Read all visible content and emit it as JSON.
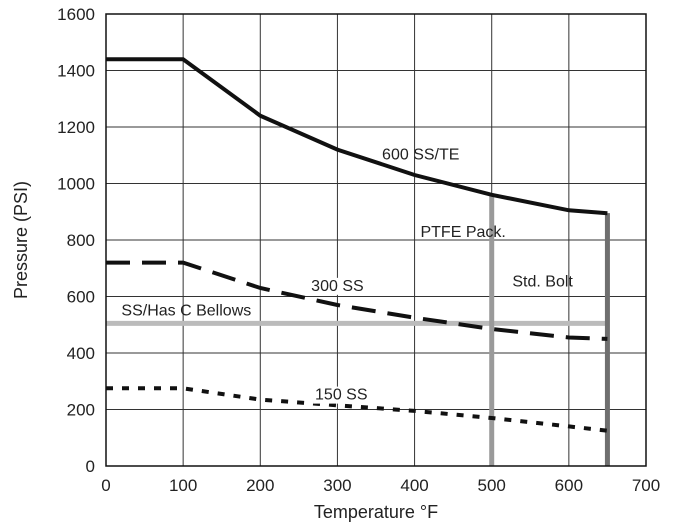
{
  "chart_data": {
    "type": "line",
    "xlabel": "Temperature °F",
    "ylabel": "Pressure (PSI)",
    "xlim": [
      0,
      700
    ],
    "ylim": [
      0,
      1600
    ],
    "x_ticks": [
      0,
      100,
      200,
      300,
      400,
      500,
      600,
      700
    ],
    "y_ticks": [
      0,
      200,
      400,
      600,
      800,
      1000,
      1200,
      1400,
      1600
    ],
    "x_tick_labels": [
      "0",
      "100",
      "200",
      "300",
      "400",
      "500",
      "600",
      "700"
    ],
    "y_tick_labels": [
      "0",
      "200",
      "400",
      "600",
      "800",
      "1000",
      "1200",
      "1400",
      "1600"
    ],
    "grid": true,
    "series": [
      {
        "name": "600 SS/TE",
        "style": "solid",
        "color": "#111111",
        "points": [
          [
            0,
            1440
          ],
          [
            100,
            1440
          ],
          [
            200,
            1240
          ],
          [
            300,
            1120
          ],
          [
            400,
            1030
          ],
          [
            500,
            960
          ],
          [
            600,
            905
          ],
          [
            650,
            895
          ]
        ]
      },
      {
        "name": "300 SS",
        "style": "dashed",
        "color": "#111111",
        "points": [
          [
            0,
            720
          ],
          [
            100,
            720
          ],
          [
            200,
            630
          ],
          [
            300,
            570
          ],
          [
            400,
            525
          ],
          [
            500,
            485
          ],
          [
            600,
            455
          ],
          [
            650,
            450
          ]
        ]
      },
      {
        "name": "150 SS",
        "style": "dotted",
        "color": "#111111",
        "points": [
          [
            0,
            275
          ],
          [
            100,
            275
          ],
          [
            200,
            235
          ],
          [
            300,
            215
          ],
          [
            400,
            195
          ],
          [
            500,
            170
          ],
          [
            600,
            140
          ],
          [
            650,
            125
          ]
        ]
      }
    ],
    "limit_lines": [
      {
        "label": "SS/Has C Bellows",
        "orientation": "horizontal",
        "value": 505,
        "from": 0,
        "to": 650,
        "color": "#bbbbbb"
      },
      {
        "label": "PTFE Pack.",
        "orientation": "vertical",
        "value": 500,
        "from": 0,
        "to": 965,
        "color": "#9a9a9a"
      },
      {
        "label": "Std. Bolt",
        "orientation": "vertical",
        "value": 650,
        "from": 0,
        "to": 895,
        "color": "#6f6f6f"
      }
    ]
  }
}
